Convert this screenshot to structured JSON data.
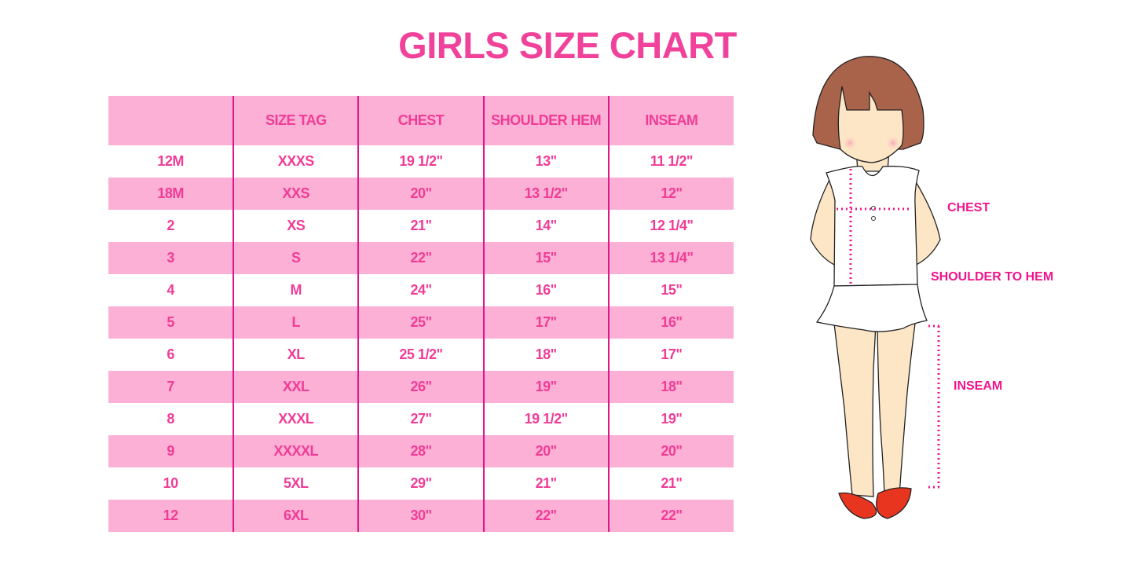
{
  "title": "GIRLS SIZE CHART",
  "table": {
    "headers": [
      "",
      "SIZE TAG",
      "CHEST",
      "SHOULDER HEM",
      "INSEAM"
    ],
    "rows": [
      [
        "12M",
        "XXXS",
        "19 1/2\"",
        "13\"",
        "11 1/2\""
      ],
      [
        "18M",
        "XXS",
        "20\"",
        "13 1/2\"",
        "12\""
      ],
      [
        "2",
        "XS",
        "21\"",
        "14\"",
        "12 1/4\""
      ],
      [
        "3",
        "S",
        "22\"",
        "15\"",
        "13 1/4\""
      ],
      [
        "4",
        "M",
        "24\"",
        "16\"",
        "15\""
      ],
      [
        "5",
        "L",
        "25\"",
        "17\"",
        "16\""
      ],
      [
        "6",
        "XL",
        "25 1/2\"",
        "18\"",
        "17\""
      ],
      [
        "7",
        "XXL",
        "26\"",
        "19\"",
        "18\""
      ],
      [
        "8",
        "XXXL",
        "27\"",
        "19 1/2\"",
        "19\""
      ],
      [
        "9",
        "XXXXL",
        "28\"",
        "20\"",
        "20\""
      ],
      [
        "10",
        "5XL",
        "29\"",
        "21\"",
        "21\""
      ],
      [
        "12",
        "6XL",
        "30\"",
        "22\"",
        "22\""
      ]
    ]
  },
  "figure": {
    "labels": {
      "chest": "CHEST",
      "shoulder_to_hem": "SHOULDER TO HEM",
      "inseam": "INSEAM"
    }
  },
  "colors": {
    "accent": "#f0429a",
    "row_pink": "#fcb0d5",
    "divider": "#e0158a"
  }
}
